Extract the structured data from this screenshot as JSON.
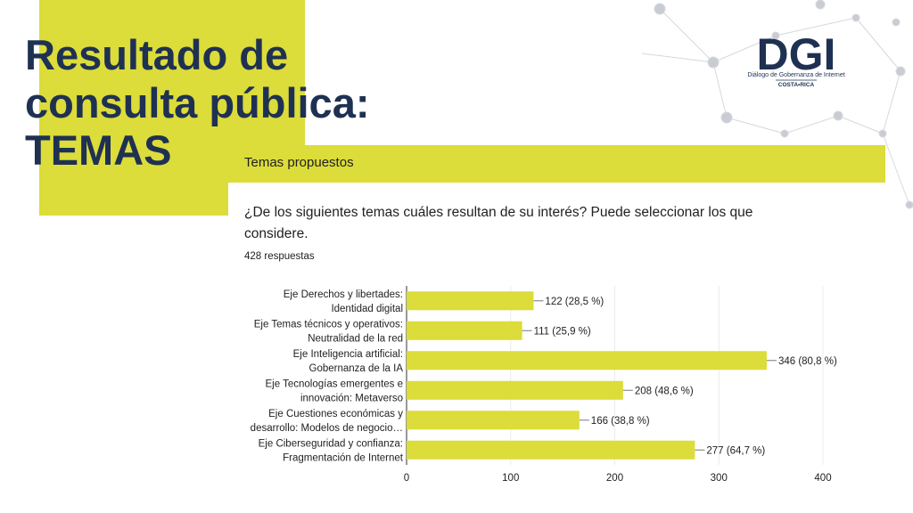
{
  "slide_title": [
    "Resultado de",
    "consulta pública:",
    "TEMAS"
  ],
  "logo": {
    "name": "DGI",
    "tagline": "Diálogo de Gobernanza de Internet",
    "country": "COSTA•RICA"
  },
  "form": {
    "section": "Temas propuestos",
    "question": [
      "¿De los siguientes temas cuáles resultan de su interés? Puede seleccionar los que",
      "considere."
    ],
    "responses": "428 respuestas"
  },
  "chart_data": {
    "type": "bar",
    "orientation": "horizontal",
    "color": "#dcdc3a",
    "categories": [
      [
        "Eje Derechos y libertades:",
        "Identidad digital"
      ],
      [
        "Eje Temas técnicos y operativos:",
        "Neutralidad de la red"
      ],
      [
        "Eje Inteligencia artificial:",
        "Gobernanza de la IA"
      ],
      [
        "Eje Tecnologías emergentes e",
        "innovación: Metaverso"
      ],
      [
        "Eje Cuestiones económicas y",
        "desarrollo: Modelos de negocio…"
      ],
      [
        "Eje Ciberseguridad y confianza:",
        "Fragmentación de Internet"
      ]
    ],
    "values": [
      122,
      111,
      346,
      208,
      166,
      277
    ],
    "value_labels": [
      "122 (28,5 %)",
      "111 (25,9 %)",
      "346 (80,8 %)",
      "208 (48,6 %)",
      "166 (38,8 %)",
      "277 (64,7 %)"
    ],
    "xlim": [
      0,
      400
    ],
    "xticks": [
      0,
      100,
      200,
      300,
      400
    ],
    "grid": true
  }
}
